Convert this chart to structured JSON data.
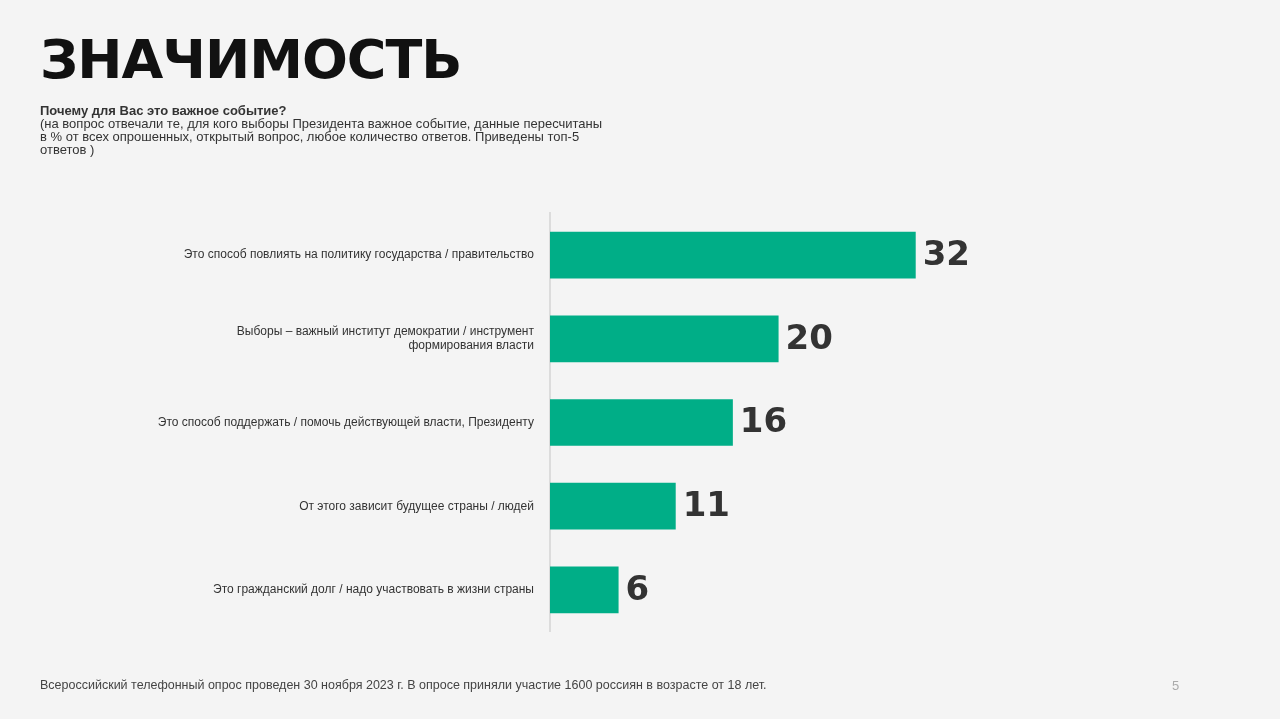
{
  "chart_data": {
    "type": "bar",
    "orientation": "horizontal",
    "title": "ЗНАЧИМОСТЬ",
    "subtitle": "Почему для Вас это важное событие?\n(на вопрос отвечали те, для кого выборы Президента важное событие, данные пересчитаны в % от всех опрошенных, открытый вопрос, любое количество ответов. Приведены топ-5 ответов )",
    "categories": [
      "Это способ повлиять на политику государства / правительство",
      "Выборы – важный институт демократии / инструмент формирования власти",
      "Это способ поддержать / помочь действующей власти, Президенту",
      "От этого зависит будущее страны / людей",
      "Это гражданский долг / надо участвовать в жизни страны"
    ],
    "values": [
      32,
      20,
      16,
      11,
      6
    ],
    "color": "#00ae87",
    "data_labels": true,
    "legend": false,
    "annotations": [
      "Всероссийский телефонный опрос проведен 30 ноября 2023 г. В опросе приняли участие 1600 россиян в возрасте от 18 лет.",
      "5"
    ]
  }
}
